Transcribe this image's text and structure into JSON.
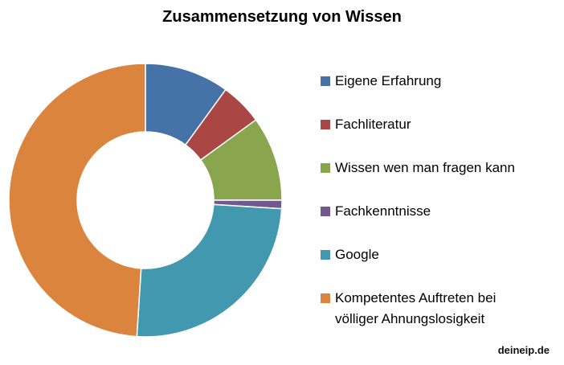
{
  "chart_data": {
    "type": "pie",
    "subtype": "donut",
    "title": "Zusammensetzung von Wissen",
    "categories": [
      "Eigene Erfahrung",
      "Fachliteratur",
      "Wissen wen man fragen kann",
      "Fachkenntnisse",
      "Google",
      "Kompetentes Auftreten bei völliger Ahnungslosigkeit"
    ],
    "values": [
      10,
      5,
      10,
      1,
      25,
      49
    ],
    "colors": [
      "#4572a7",
      "#aa4643",
      "#89a54e",
      "#71588f",
      "#4198af",
      "#db843d"
    ],
    "legend_position": "right",
    "start_angle_deg": 0,
    "direction": "clockwise"
  },
  "legend": [
    {
      "label": "Eigene Erfahrung",
      "color": "#4572a7"
    },
    {
      "label": "Fachliteratur",
      "color": "#aa4643"
    },
    {
      "label": "Wissen wen man fragen kann",
      "color": "#89a54e"
    },
    {
      "label": "Fachkenntnisse",
      "color": "#71588f"
    },
    {
      "label": "Google",
      "color": "#4198af"
    },
    {
      "label": "Kompetentes Auftreten bei\nvölliger Ahnungslosigkeit",
      "color": "#db843d"
    }
  ],
  "watermark": "deineip.de"
}
